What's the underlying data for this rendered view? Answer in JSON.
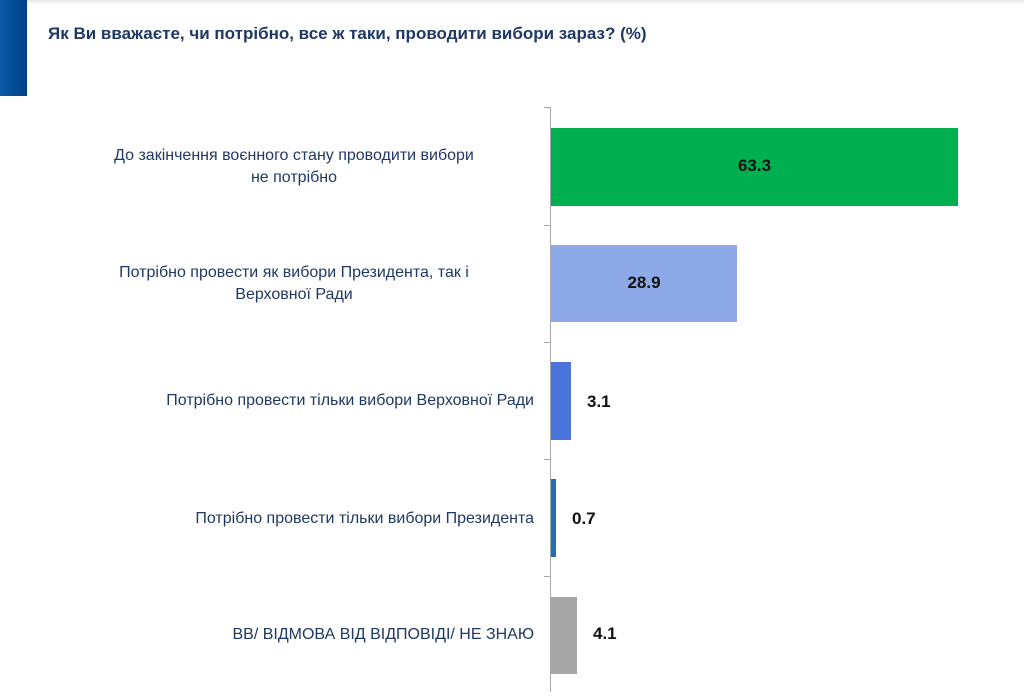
{
  "title": "Як Ви вважаєте, чи потрібно, все ж таки, проводити вибори зараз? (%)",
  "chart_data": {
    "type": "bar",
    "orientation": "horizontal",
    "title": "Як Ви вважаєте, чи потрібно, все ж таки, проводити вибори зараз? (%)",
    "xlabel": "",
    "ylabel": "",
    "grid": false,
    "legend": null,
    "categories": [
      "До закінчення воєнного стану проводити вибори не потрібно",
      "Потрібно провести як вибори Президента, так і Верховної Ради",
      "Потрібно провести тільки вибори Верховної Ради",
      "Потрібно провести тільки вибори Президента",
      "ВВ/ ВІДМОВА ВІД ВІДПОВІДІ/ НЕ ЗНАЮ"
    ],
    "values": [
      63.3,
      28.9,
      3.1,
      0.7,
      4.1
    ],
    "colors": [
      "#00b050",
      "#8ea9e8",
      "#4a74d9",
      "#1f6fb2",
      "#a6a6a6"
    ],
    "xlim": [
      0,
      70
    ]
  },
  "rows": [
    {
      "label_line1": "До закінчення воєнного стану проводити вибори",
      "label_line2": "не потрібно",
      "value": "63.3"
    },
    {
      "label_line1": "Потрібно провести як вибори Президента, так і",
      "label_line2": "Верховної Ради",
      "value": "28.9"
    },
    {
      "label_line1": "Потрібно провести тільки вибори Верховної Ради",
      "value": "3.1"
    },
    {
      "label_line1": "Потрібно провести тільки вибори Президента",
      "value": "0.7"
    },
    {
      "label_line1": "ВВ/ ВІДМОВА ВІД ВІДПОВІДІ/ НЕ ЗНАЮ",
      "value": "4.1"
    }
  ]
}
